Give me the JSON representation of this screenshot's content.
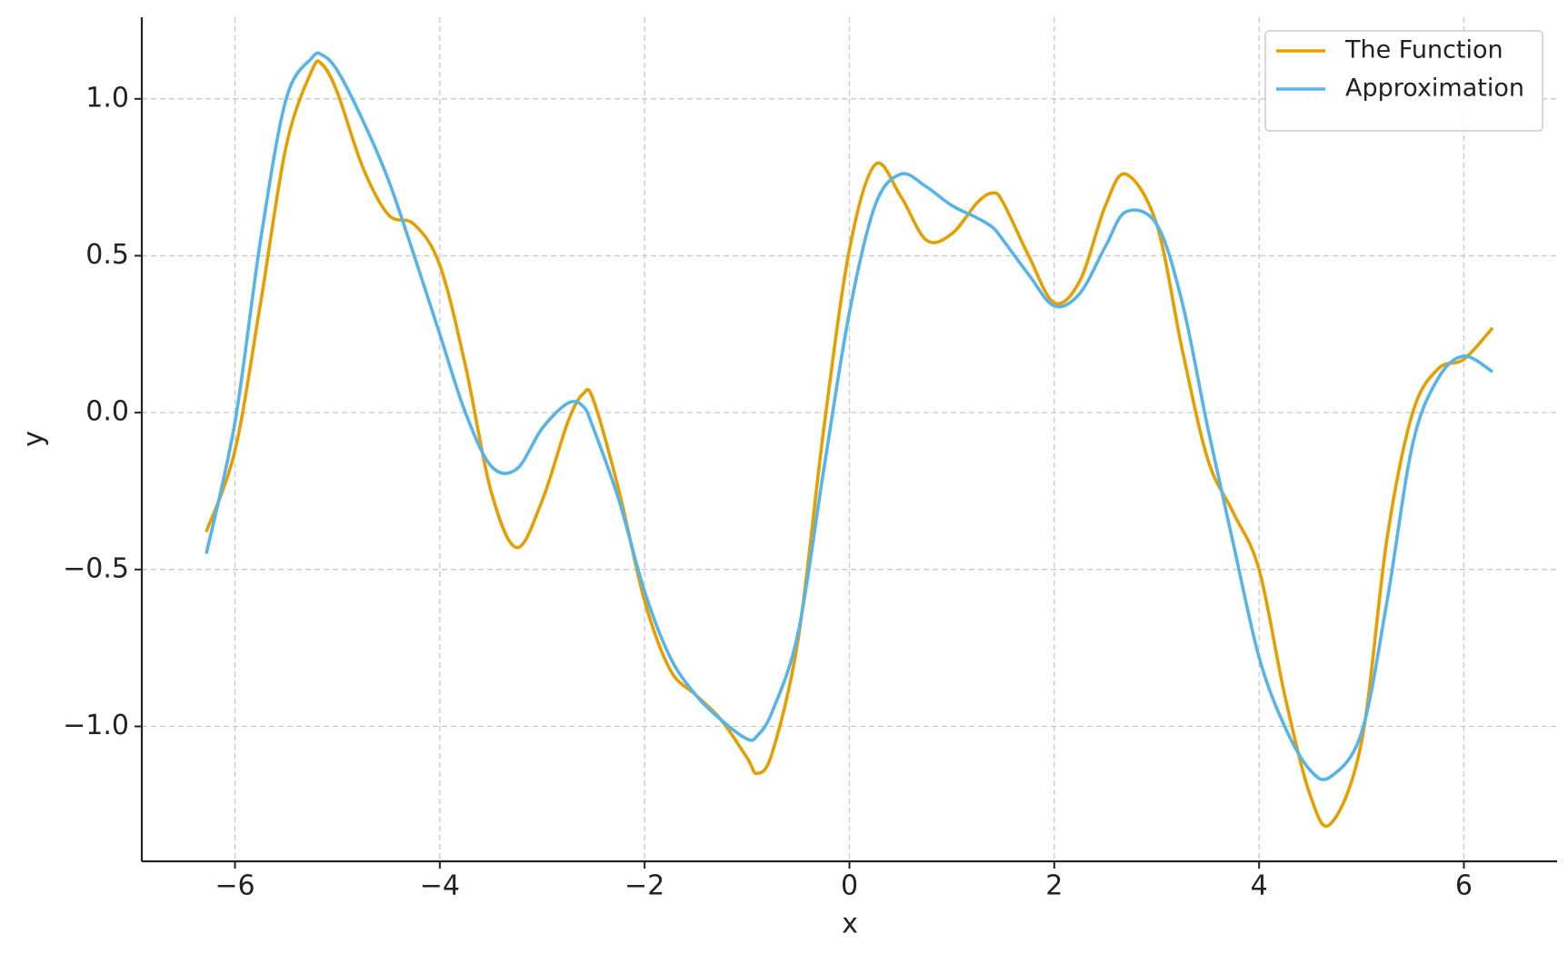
{
  "chart_data": {
    "type": "line",
    "x_label": "x",
    "y_label": "y",
    "x": [
      -6.28,
      -6.0,
      -5.75,
      -5.5,
      -5.25,
      -5.15,
      -5.0,
      -4.75,
      -4.5,
      -4.25,
      -4.0,
      -3.75,
      -3.5,
      -3.25,
      -3.0,
      -2.75,
      -2.6,
      -2.5,
      -2.25,
      -2.0,
      -1.75,
      -1.5,
      -1.25,
      -1.0,
      -0.9,
      -0.75,
      -0.5,
      -0.25,
      0.0,
      0.25,
      0.5,
      0.75,
      1.0,
      1.25,
      1.4,
      1.5,
      1.75,
      2.0,
      2.25,
      2.5,
      2.7,
      3.0,
      3.25,
      3.5,
      3.75,
      4.0,
      4.25,
      4.5,
      4.7,
      5.0,
      5.25,
      5.5,
      5.75,
      6.0,
      6.28
    ],
    "series": [
      {
        "name": "The Function",
        "color": "#e69f00",
        "values": [
          -0.38,
          -0.12,
          0.35,
          0.85,
          1.09,
          1.11,
          1.02,
          0.78,
          0.63,
          0.6,
          0.47,
          0.15,
          -0.25,
          -0.43,
          -0.28,
          -0.03,
          0.06,
          0.04,
          -0.25,
          -0.6,
          -0.82,
          -0.9,
          -0.98,
          -1.1,
          -1.15,
          -1.08,
          -0.72,
          -0.05,
          0.52,
          0.79,
          0.69,
          0.55,
          0.57,
          0.67,
          0.7,
          0.67,
          0.5,
          0.35,
          0.42,
          0.66,
          0.76,
          0.6,
          0.2,
          -0.15,
          -0.32,
          -0.5,
          -0.9,
          -1.22,
          -1.31,
          -1.05,
          -0.4,
          0.0,
          0.14,
          0.17,
          0.27
        ]
      },
      {
        "name": "Approximation",
        "color": "#56b4e9",
        "values": [
          -0.45,
          -0.03,
          0.55,
          1.0,
          1.13,
          1.14,
          1.09,
          0.93,
          0.74,
          0.5,
          0.25,
          0.0,
          -0.17,
          -0.18,
          -0.05,
          0.03,
          0.02,
          -0.05,
          -0.28,
          -0.57,
          -0.78,
          -0.9,
          -0.98,
          -1.04,
          -1.03,
          -0.95,
          -0.7,
          -0.18,
          0.32,
          0.66,
          0.76,
          0.72,
          0.66,
          0.62,
          0.59,
          0.55,
          0.44,
          0.34,
          0.38,
          0.53,
          0.64,
          0.6,
          0.35,
          -0.05,
          -0.42,
          -0.78,
          -1.0,
          -1.14,
          -1.16,
          -1.02,
          -0.6,
          -0.1,
          0.11,
          0.18,
          0.13
        ]
      }
    ],
    "xlim": [
      -6.91,
      6.91
    ],
    "ylim": [
      -1.43,
      1.26
    ],
    "xticks": [
      {
        "value": -6,
        "label": "−6"
      },
      {
        "value": -4,
        "label": "−4"
      },
      {
        "value": -2,
        "label": "−2"
      },
      0,
      2,
      4,
      6
    ],
    "yticks": [
      {
        "value": -1.0,
        "label": "−1.0"
      },
      {
        "value": -0.5,
        "label": "−0.5"
      },
      {
        "value": 0.0,
        "label": "0.0"
      },
      0.5,
      {
        "value": 1.0,
        "label": "1.0"
      }
    ],
    "grid": true,
    "legend": "upper right"
  }
}
